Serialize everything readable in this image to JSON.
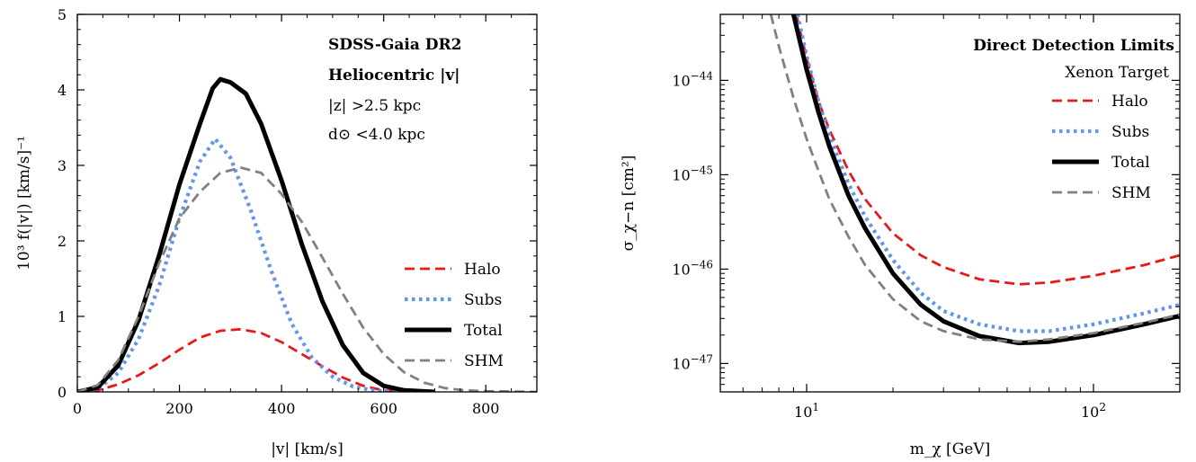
{
  "chart_data": [
    {
      "type": "line",
      "xlabel": "|v| [km/s]",
      "ylabel": "10³ f(|v|) [km/s]⁻¹",
      "xlim": [
        0,
        900
      ],
      "ylim": [
        0,
        5
      ],
      "xticks": [
        0,
        200,
        400,
        600,
        800
      ],
      "yticks": [
        0,
        1,
        2,
        3,
        4,
        5
      ],
      "legend_position": "lower-right",
      "annotations": [
        {
          "text": "SDSS-Gaia DR2",
          "bold": true
        },
        {
          "text": "Heliocentric |v|",
          "bold": true
        },
        {
          "text": "|z| >2.5 kpc",
          "bold": false
        },
        {
          "text": "d⊙ <4.0 kpc",
          "bold": false
        }
      ],
      "series": [
        {
          "name": "Halo",
          "color": "#e41a1c",
          "dash": "dashed",
          "x": [
            0,
            40,
            80,
            120,
            160,
            200,
            240,
            280,
            320,
            360,
            400,
            440,
            480,
            520,
            560,
            600,
            640,
            700
          ],
          "y": [
            0,
            0.02,
            0.1,
            0.22,
            0.38,
            0.56,
            0.72,
            0.81,
            0.83,
            0.78,
            0.66,
            0.5,
            0.34,
            0.19,
            0.08,
            0.02,
            0,
            0
          ]
        },
        {
          "name": "Subs",
          "color": "#6495ed",
          "dash": "dotted",
          "x": [
            0,
            40,
            80,
            120,
            160,
            200,
            240,
            270,
            300,
            340,
            380,
            420,
            460,
            500,
            540,
            580,
            620,
            660
          ],
          "y": [
            0,
            0.04,
            0.25,
            0.7,
            1.4,
            2.3,
            3.05,
            3.35,
            3.1,
            2.4,
            1.6,
            0.9,
            0.45,
            0.2,
            0.07,
            0.02,
            0,
            0
          ]
        },
        {
          "name": "Total",
          "color": "#000000",
          "dash": "solid",
          "x": [
            0,
            40,
            80,
            120,
            160,
            200,
            240,
            265,
            280,
            300,
            330,
            360,
            400,
            440,
            480,
            520,
            560,
            600,
            640,
            700
          ],
          "y": [
            0,
            0.06,
            0.35,
            0.95,
            1.8,
            2.75,
            3.55,
            4.02,
            4.14,
            4.1,
            3.95,
            3.55,
            2.8,
            1.95,
            1.2,
            0.62,
            0.25,
            0.08,
            0.02,
            0
          ]
        },
        {
          "name": "SHM",
          "color": "#808080",
          "dash": "dashed",
          "x": [
            0,
            40,
            80,
            120,
            160,
            200,
            240,
            280,
            320,
            360,
            400,
            440,
            480,
            520,
            560,
            600,
            640,
            680,
            720,
            760,
            800,
            900
          ],
          "y": [
            0,
            0.09,
            0.42,
            1.0,
            1.7,
            2.3,
            2.65,
            2.9,
            2.97,
            2.9,
            2.62,
            2.25,
            1.78,
            1.3,
            0.85,
            0.5,
            0.26,
            0.12,
            0.05,
            0.02,
            0.01,
            0
          ]
        }
      ]
    },
    {
      "type": "line",
      "xlabel": "m_χ [GeV]",
      "ylabel": "σ_χ−n [cm²]",
      "xscale": "log",
      "yscale": "log",
      "xlim": [
        5,
        200
      ],
      "ylim": [
        5e-48,
        5e-44
      ],
      "xtick_labels": [
        {
          "value": 10,
          "base": "10",
          "exp": "1"
        },
        {
          "value": 100,
          "base": "10",
          "exp": "2"
        }
      ],
      "ytick_labels": [
        {
          "value": 1e-44,
          "base": "10",
          "exp": "−44"
        },
        {
          "value": 1e-45,
          "base": "10",
          "exp": "−45"
        },
        {
          "value": 1e-46,
          "base": "10",
          "exp": "−46"
        },
        {
          "value": 1e-47,
          "base": "10",
          "exp": "−47"
        }
      ],
      "legend_position": "upper-right",
      "annotations": [
        {
          "text": "Direct Detection Limits",
          "bold": true
        },
        {
          "text": "Xenon Target",
          "bold": false
        }
      ],
      "series": [
        {
          "name": "Halo",
          "color": "#e41a1c",
          "dash": "dashed",
          "x": [
            9.2,
            10,
            11,
            12,
            14,
            16,
            20,
            25,
            30,
            40,
            55,
            70,
            100,
            150,
            200
          ],
          "y": [
            5e-44,
            1.7e-44,
            6e-45,
            3e-45,
            1.1e-45,
            5.5e-46,
            2.4e-46,
            1.4e-46,
            1.05e-46,
            7.8e-47,
            6.9e-47,
            7.2e-47,
            8.5e-47,
            1.1e-46,
            1.4e-46
          ]
        },
        {
          "name": "Subs",
          "color": "#6495ed",
          "dash": "dotted",
          "x": [
            9.3,
            10,
            11,
            12,
            14,
            16,
            20,
            25,
            30,
            40,
            55,
            70,
            100,
            150,
            200
          ],
          "y": [
            5e-44,
            1.8e-44,
            6e-45,
            2.6e-45,
            8e-46,
            3.6e-46,
            1.25e-46,
            5.6e-47,
            3.6e-47,
            2.6e-47,
            2.2e-47,
            2.2e-47,
            2.6e-47,
            3.4e-47,
            4.2e-47
          ]
        },
        {
          "name": "Total",
          "color": "#000000",
          "dash": "solid",
          "x": [
            9.0,
            10,
            11,
            12,
            14,
            16,
            20,
            25,
            30,
            40,
            55,
            70,
            100,
            150,
            200
          ],
          "y": [
            5e-44,
            1.3e-44,
            4.6e-45,
            2e-45,
            6e-46,
            2.7e-46,
            9e-47,
            4.2e-47,
            2.8e-47,
            1.95e-47,
            1.65e-47,
            1.7e-47,
            2e-47,
            2.6e-47,
            3.2e-47
          ]
        },
        {
          "name": "SHM",
          "color": "#808080",
          "dash": "dashed",
          "x": [
            7.5,
            8,
            9,
            10,
            11,
            12,
            14,
            16,
            20,
            25,
            30,
            40,
            55,
            70,
            100,
            150,
            200
          ],
          "y": [
            5e-44,
            2.3e-44,
            6.5e-45,
            2.4e-45,
            1.1e-45,
            5.5e-46,
            2.2e-46,
            1.1e-46,
            4.8e-47,
            2.8e-47,
            2.2e-47,
            1.8e-47,
            1.7e-47,
            1.8e-47,
            2.1e-47,
            2.7e-47,
            3.3e-47
          ]
        }
      ]
    }
  ]
}
